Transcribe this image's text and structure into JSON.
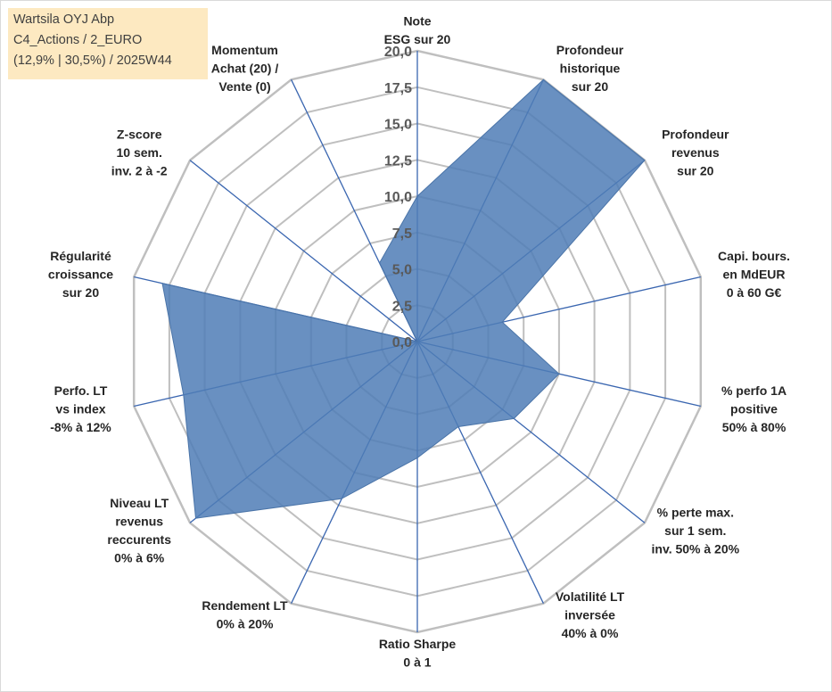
{
  "info_box": {
    "line1": "Wartsila OYJ Abp",
    "line2": "C4_Actions / 2_EURO",
    "line3": "(12,9% | 30,5%) / 2025W44"
  },
  "colors": {
    "fill": "#4f7db6",
    "stroke": "#4a74a8",
    "spoke": "#3a66b0",
    "grid": "#bfbfbf",
    "info_bg": "#fde9c1"
  },
  "chart_data": {
    "type": "radar",
    "title": "",
    "rmin": 0,
    "rmax": 20,
    "ticks": [
      "0,0",
      "2,5",
      "5,0",
      "7,5",
      "10,0",
      "12,5",
      "15,0",
      "17,5",
      "20,0"
    ],
    "axes": [
      {
        "label": [
          "Note",
          "ESG sur 20"
        ],
        "value": 10
      },
      {
        "label": [
          "Profondeur",
          "historique",
          "sur 20"
        ],
        "value": 20
      },
      {
        "label": [
          "Profondeur",
          "revenus",
          "sur 20"
        ],
        "value": 20
      },
      {
        "label": [
          "Capi. bours.",
          "en MdEUR",
          "0 à 60 G€"
        ],
        "value": 6
      },
      {
        "label": [
          "% perfo 1A",
          "positive",
          "50% à 80%"
        ],
        "value": 10
      },
      {
        "label": [
          "% perte max.",
          "sur 1 sem.",
          "inv. 50% à 20%"
        ],
        "value": 8.5
      },
      {
        "label": [
          "Volatilité LT",
          "inversée",
          "40% à 0%"
        ],
        "value": 6.5
      },
      {
        "label": [
          "Ratio Sharpe",
          "0 à 1"
        ],
        "value": 8
      },
      {
        "label": [
          "Rendement LT",
          "0% à 20%"
        ],
        "value": 12
      },
      {
        "label": [
          "Niveau LT",
          "revenus",
          "reccurents",
          "0% à 6%"
        ],
        "value": 19.5
      },
      {
        "label": [
          "Perfo. LT",
          "vs index",
          "-8% à 12%"
        ],
        "value": 16.5
      },
      {
        "label": [
          "Régularité",
          "croissance",
          "sur 20"
        ],
        "value": 18
      },
      {
        "label": [
          "Z-score",
          "10 sem.",
          "inv. 2 à -2"
        ],
        "value": 0
      },
      {
        "label": [
          "Momentum",
          "Achat (20) /",
          "Vente (0)"
        ],
        "value": 6
      }
    ]
  }
}
